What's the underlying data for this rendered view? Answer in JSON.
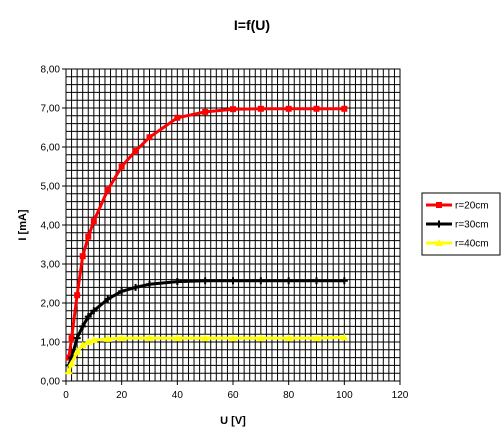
{
  "chart_data": {
    "type": "line",
    "title": "I=f(U)",
    "xlabel": "U [V]",
    "ylabel": "I [mA]",
    "xlim": [
      0,
      120
    ],
    "ylim": [
      0,
      8
    ],
    "x_ticks": [
      "0",
      "20",
      "40",
      "60",
      "80",
      "100",
      "120"
    ],
    "y_ticks": [
      "0,00",
      "1,00",
      "2,00",
      "3,00",
      "4,00",
      "5,00",
      "6,00",
      "7,00",
      "8,00"
    ],
    "grid": true,
    "legend_position": "right",
    "series": [
      {
        "name": "r=20cm",
        "color": "#ff0000",
        "marker": "square",
        "points": [
          [
            1,
            0.6
          ],
          [
            2,
            1.1
          ],
          [
            4,
            2.2
          ],
          [
            6,
            3.2
          ],
          [
            8,
            3.7
          ],
          [
            10,
            4.1
          ],
          [
            15,
            4.9
          ],
          [
            20,
            5.5
          ],
          [
            25,
            5.9
          ],
          [
            30,
            6.25
          ],
          [
            40,
            6.75
          ],
          [
            50,
            6.9
          ],
          [
            60,
            6.97
          ],
          [
            70,
            6.98
          ],
          [
            80,
            6.98
          ],
          [
            90,
            6.98
          ],
          [
            100,
            6.98
          ]
        ]
      },
      {
        "name": "r=30cm",
        "color": "#000000",
        "marker": "plus",
        "points": [
          [
            1,
            0.4
          ],
          [
            2,
            0.6
          ],
          [
            4,
            1.1
          ],
          [
            6,
            1.4
          ],
          [
            8,
            1.65
          ],
          [
            10,
            1.8
          ],
          [
            15,
            2.1
          ],
          [
            20,
            2.3
          ],
          [
            25,
            2.4
          ],
          [
            30,
            2.48
          ],
          [
            40,
            2.55
          ],
          [
            50,
            2.57
          ],
          [
            60,
            2.57
          ],
          [
            70,
            2.57
          ],
          [
            80,
            2.57
          ],
          [
            90,
            2.57
          ],
          [
            100,
            2.57
          ]
        ]
      },
      {
        "name": "r=40cm",
        "color": "#ffff00",
        "marker": "triangle",
        "points": [
          [
            1,
            0.25
          ],
          [
            2,
            0.45
          ],
          [
            4,
            0.75
          ],
          [
            6,
            0.92
          ],
          [
            8,
            1.0
          ],
          [
            10,
            1.05
          ],
          [
            15,
            1.08
          ],
          [
            20,
            1.1
          ],
          [
            30,
            1.1
          ],
          [
            40,
            1.1
          ],
          [
            50,
            1.1
          ],
          [
            60,
            1.1
          ],
          [
            70,
            1.1
          ],
          [
            80,
            1.1
          ],
          [
            90,
            1.1
          ],
          [
            100,
            1.12
          ]
        ]
      }
    ]
  }
}
